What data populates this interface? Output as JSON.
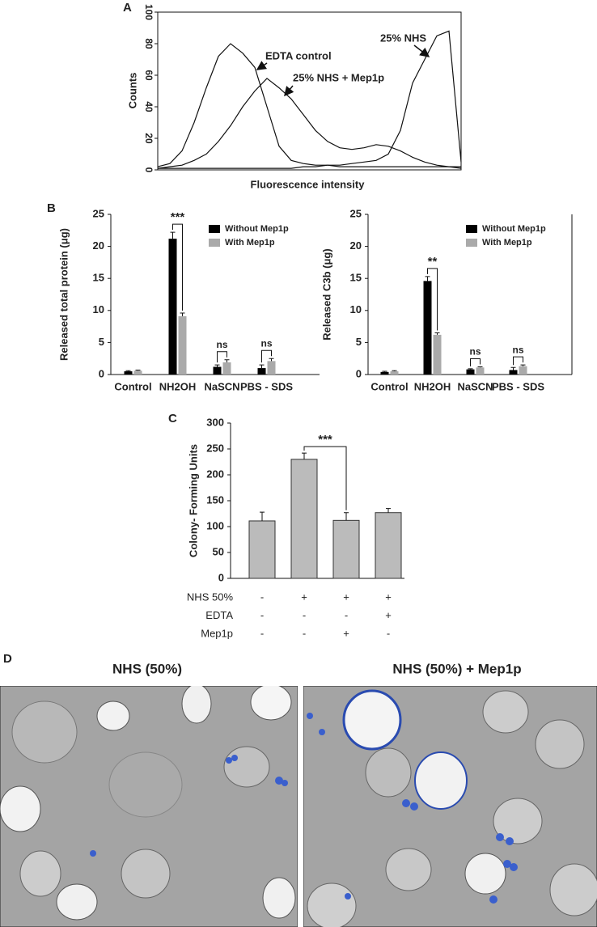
{
  "chart_data": [
    {
      "type": "line",
      "panel": "A",
      "ylabel": "Counts",
      "xlabel": "Fluorescence intensity",
      "x": [
        0,
        4,
        8,
        12,
        16,
        20,
        24,
        28,
        32,
        36,
        40,
        44,
        48,
        52,
        56,
        60,
        64,
        68,
        72,
        76,
        80,
        84,
        88,
        92,
        96,
        100
      ],
      "xlim": [
        0,
        100
      ],
      "ylim": [
        0,
        100
      ],
      "yticks": [
        0,
        20,
        40,
        60,
        80,
        100
      ],
      "series": [
        {
          "name": "EDTA control",
          "color": "#111111",
          "values": [
            2,
            4,
            12,
            30,
            52,
            72,
            80,
            74,
            65,
            40,
            15,
            6,
            4,
            3,
            3,
            2,
            2,
            2,
            2,
            2,
            2,
            2,
            2,
            2,
            2,
            2
          ]
        },
        {
          "name": "25% NHS + Mep1p",
          "color": "#111111",
          "values": [
            1,
            2,
            3,
            6,
            10,
            18,
            28,
            40,
            50,
            58,
            52,
            45,
            35,
            25,
            18,
            14,
            13,
            14,
            16,
            15,
            12,
            8,
            5,
            3,
            2,
            1
          ]
        },
        {
          "name": "25% NHS",
          "color": "#111111",
          "values": [
            1,
            1,
            1,
            1,
            1,
            1,
            1,
            1,
            1,
            1,
            1,
            1,
            2,
            2,
            3,
            3,
            4,
            5,
            6,
            10,
            25,
            55,
            70,
            85,
            88,
            5
          ]
        }
      ]
    },
    {
      "type": "bar",
      "panel": "B",
      "ylabel": "Released total protein (μg)",
      "categories": [
        "Control",
        "NH2OH",
        "NaSCN",
        "PBS - SDS"
      ],
      "ylim": [
        0,
        25
      ],
      "yticks": [
        0,
        5,
        10,
        15,
        20,
        25
      ],
      "series": [
        {
          "name": "Without Mep1p",
          "color": "#000000",
          "values": [
            0.5,
            21.2,
            1.2,
            1.0
          ],
          "errors": [
            0.1,
            1.0,
            0.3,
            0.5
          ]
        },
        {
          "name": "With Mep1p",
          "color": "#aaaaaa",
          "values": [
            0.6,
            9.1,
            1.9,
            2.1
          ],
          "errors": [
            0.1,
            0.5,
            0.4,
            0.4
          ]
        }
      ],
      "significance": [
        null,
        "***",
        "ns",
        "ns"
      ]
    },
    {
      "type": "bar",
      "ylabel": "Released C3b (μg)",
      "categories": [
        "Control",
        "NH2OH",
        "NaSCN",
        "PBS - SDS"
      ],
      "ylim": [
        0,
        25
      ],
      "yticks": [
        0,
        5,
        10,
        15,
        20,
        25
      ],
      "series": [
        {
          "name": "Without Mep1p",
          "color": "#000000",
          "values": [
            0.4,
            14.6,
            0.8,
            0.7
          ],
          "errors": [
            0.1,
            0.7,
            0.1,
            0.4
          ]
        },
        {
          "name": "With Mep1p",
          "color": "#aaaaaa",
          "values": [
            0.5,
            6.2,
            1.1,
            1.3
          ],
          "errors": [
            0.1,
            0.3,
            0.1,
            0.2
          ]
        }
      ],
      "significance": [
        null,
        "**",
        "ns",
        "ns"
      ]
    },
    {
      "type": "bar",
      "panel": "C",
      "ylabel": "Colony- Forming Units",
      "ylim": [
        0,
        300
      ],
      "yticks": [
        0,
        50,
        100,
        150,
        200,
        250,
        300
      ],
      "series": [
        {
          "color": "#bbbbbb",
          "values": [
            111,
            230,
            112,
            127
          ],
          "errors": [
            17,
            12,
            15,
            8
          ]
        }
      ],
      "significance": [
        null,
        "***",
        null,
        null
      ],
      "conditions": [
        {
          "label": "NHS 50%",
          "values": [
            "-",
            "+",
            "+",
            "+"
          ]
        },
        {
          "label": "EDTA",
          "values": [
            "-",
            "-",
            "-",
            "+"
          ]
        },
        {
          "label": "Mep1p",
          "values": [
            "-",
            "-",
            "+",
            "-"
          ]
        }
      ]
    }
  ],
  "micrographs": {
    "panel": "D",
    "titles": [
      "NHS (50%)",
      "NHS (50%) + Mep1p"
    ]
  }
}
